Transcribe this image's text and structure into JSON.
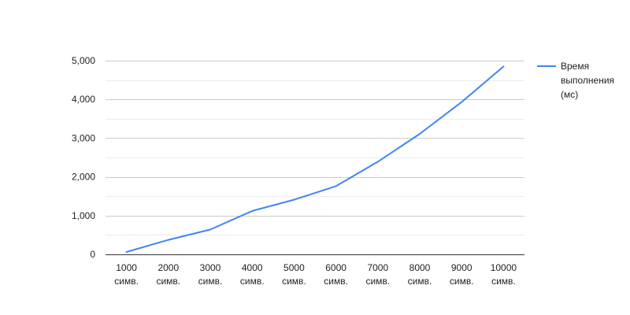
{
  "chart_data": {
    "type": "line",
    "categories": [
      [
        "1000",
        "симв."
      ],
      [
        "2000",
        "симв."
      ],
      [
        "3000",
        "симв."
      ],
      [
        "4000",
        "симв."
      ],
      [
        "5000",
        "симв."
      ],
      [
        "6000",
        "симв."
      ],
      [
        "7000",
        "симв."
      ],
      [
        "8000",
        "симв."
      ],
      [
        "9000",
        "симв."
      ],
      [
        "10000",
        "симв."
      ]
    ],
    "series": [
      {
        "name": [
          "Время",
          "выполнения",
          "(мс)"
        ],
        "color": "#4285f4",
        "values": [
          60,
          375,
          640,
          1120,
          1410,
          1760,
          2390,
          3110,
          3930,
          4850
        ]
      }
    ],
    "ylim": [
      0,
      5000
    ],
    "yticks": [
      "0",
      "1,000",
      "2,000",
      "3,000",
      "4,000",
      "5,000"
    ],
    "ytick_values": [
      0,
      1000,
      2000,
      3000,
      4000,
      5000
    ],
    "minor_grid": true,
    "legend_position": "right",
    "title": "",
    "xlabel": "",
    "ylabel": ""
  }
}
